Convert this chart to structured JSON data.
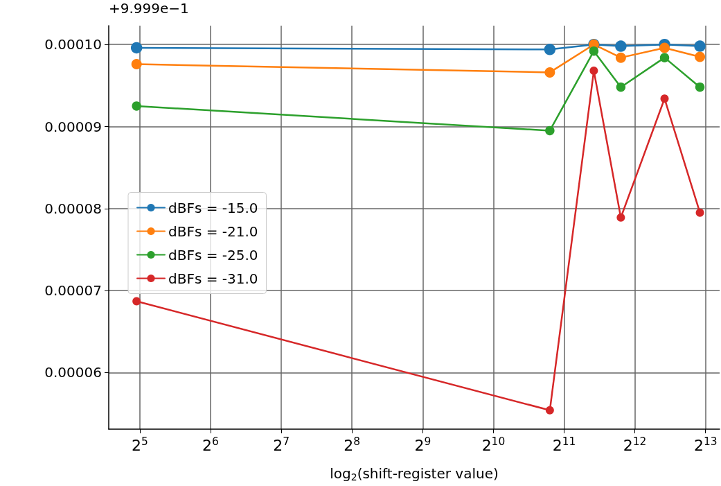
{
  "chart_data": {
    "type": "line",
    "xlabel": "log$_{2}$(shift-register value)",
    "annotations": [
      "+9.999e−1"
    ],
    "x": [
      31,
      1780,
      2740,
      3570,
      5480,
      7750
    ],
    "series": [
      {
        "name": "dBFs = -15.0",
        "color": "#1f77b4",
        "values": [
          9.96e-05,
          9.94e-05,
          0.0001,
          9.98e-05,
          0.0001,
          9.98e-05
        ]
      },
      {
        "name": "dBFs = -21.0",
        "color": "#ff7f0e",
        "values": [
          9.76e-05,
          9.66e-05,
          0.0001,
          9.84e-05,
          9.96e-05,
          9.85e-05
        ]
      },
      {
        "name": "dBFs = -25.0",
        "color": "#2ca02c",
        "values": [
          9.25e-05,
          8.95e-05,
          9.92e-05,
          9.48e-05,
          9.84e-05,
          9.48e-05
        ]
      },
      {
        "name": "dBFs = -31.0",
        "color": "#d62728",
        "values": [
          6.87e-05,
          5.54e-05,
          9.68e-05,
          7.89e-05,
          9.34e-05,
          7.95e-05
        ]
      }
    ],
    "log": "x",
    "xlim": [
      23.6,
      9400
    ],
    "xticks": [
      {
        "value": 32,
        "label": "2$^{5}$"
      },
      {
        "value": 64,
        "label": "2$^{6}$"
      },
      {
        "value": 128,
        "label": "2$^{7}$"
      },
      {
        "value": 256,
        "label": "2$^{8}$"
      },
      {
        "value": 512,
        "label": "2$^{9}$"
      },
      {
        "value": 1024,
        "label": "2$^{10}$"
      },
      {
        "value": 2048,
        "label": "2$^{11}$"
      },
      {
        "value": 4096,
        "label": "2$^{12}$"
      },
      {
        "value": 8192,
        "label": "2$^{13}$"
      }
    ],
    "ylim": [
      5.31e-05,
      0.0001023
    ],
    "yticks": [
      {
        "value": 6e-05,
        "label": "0.00006"
      },
      {
        "value": 7e-05,
        "label": "0.00007"
      },
      {
        "value": 8e-05,
        "label": "0.00008"
      },
      {
        "value": 9e-05,
        "label": "0.00009"
      },
      {
        "value": 0.0001,
        "label": "0.00010"
      }
    ],
    "grid": true,
    "legend": "left",
    "marker": "circle",
    "line_style": "solid"
  }
}
